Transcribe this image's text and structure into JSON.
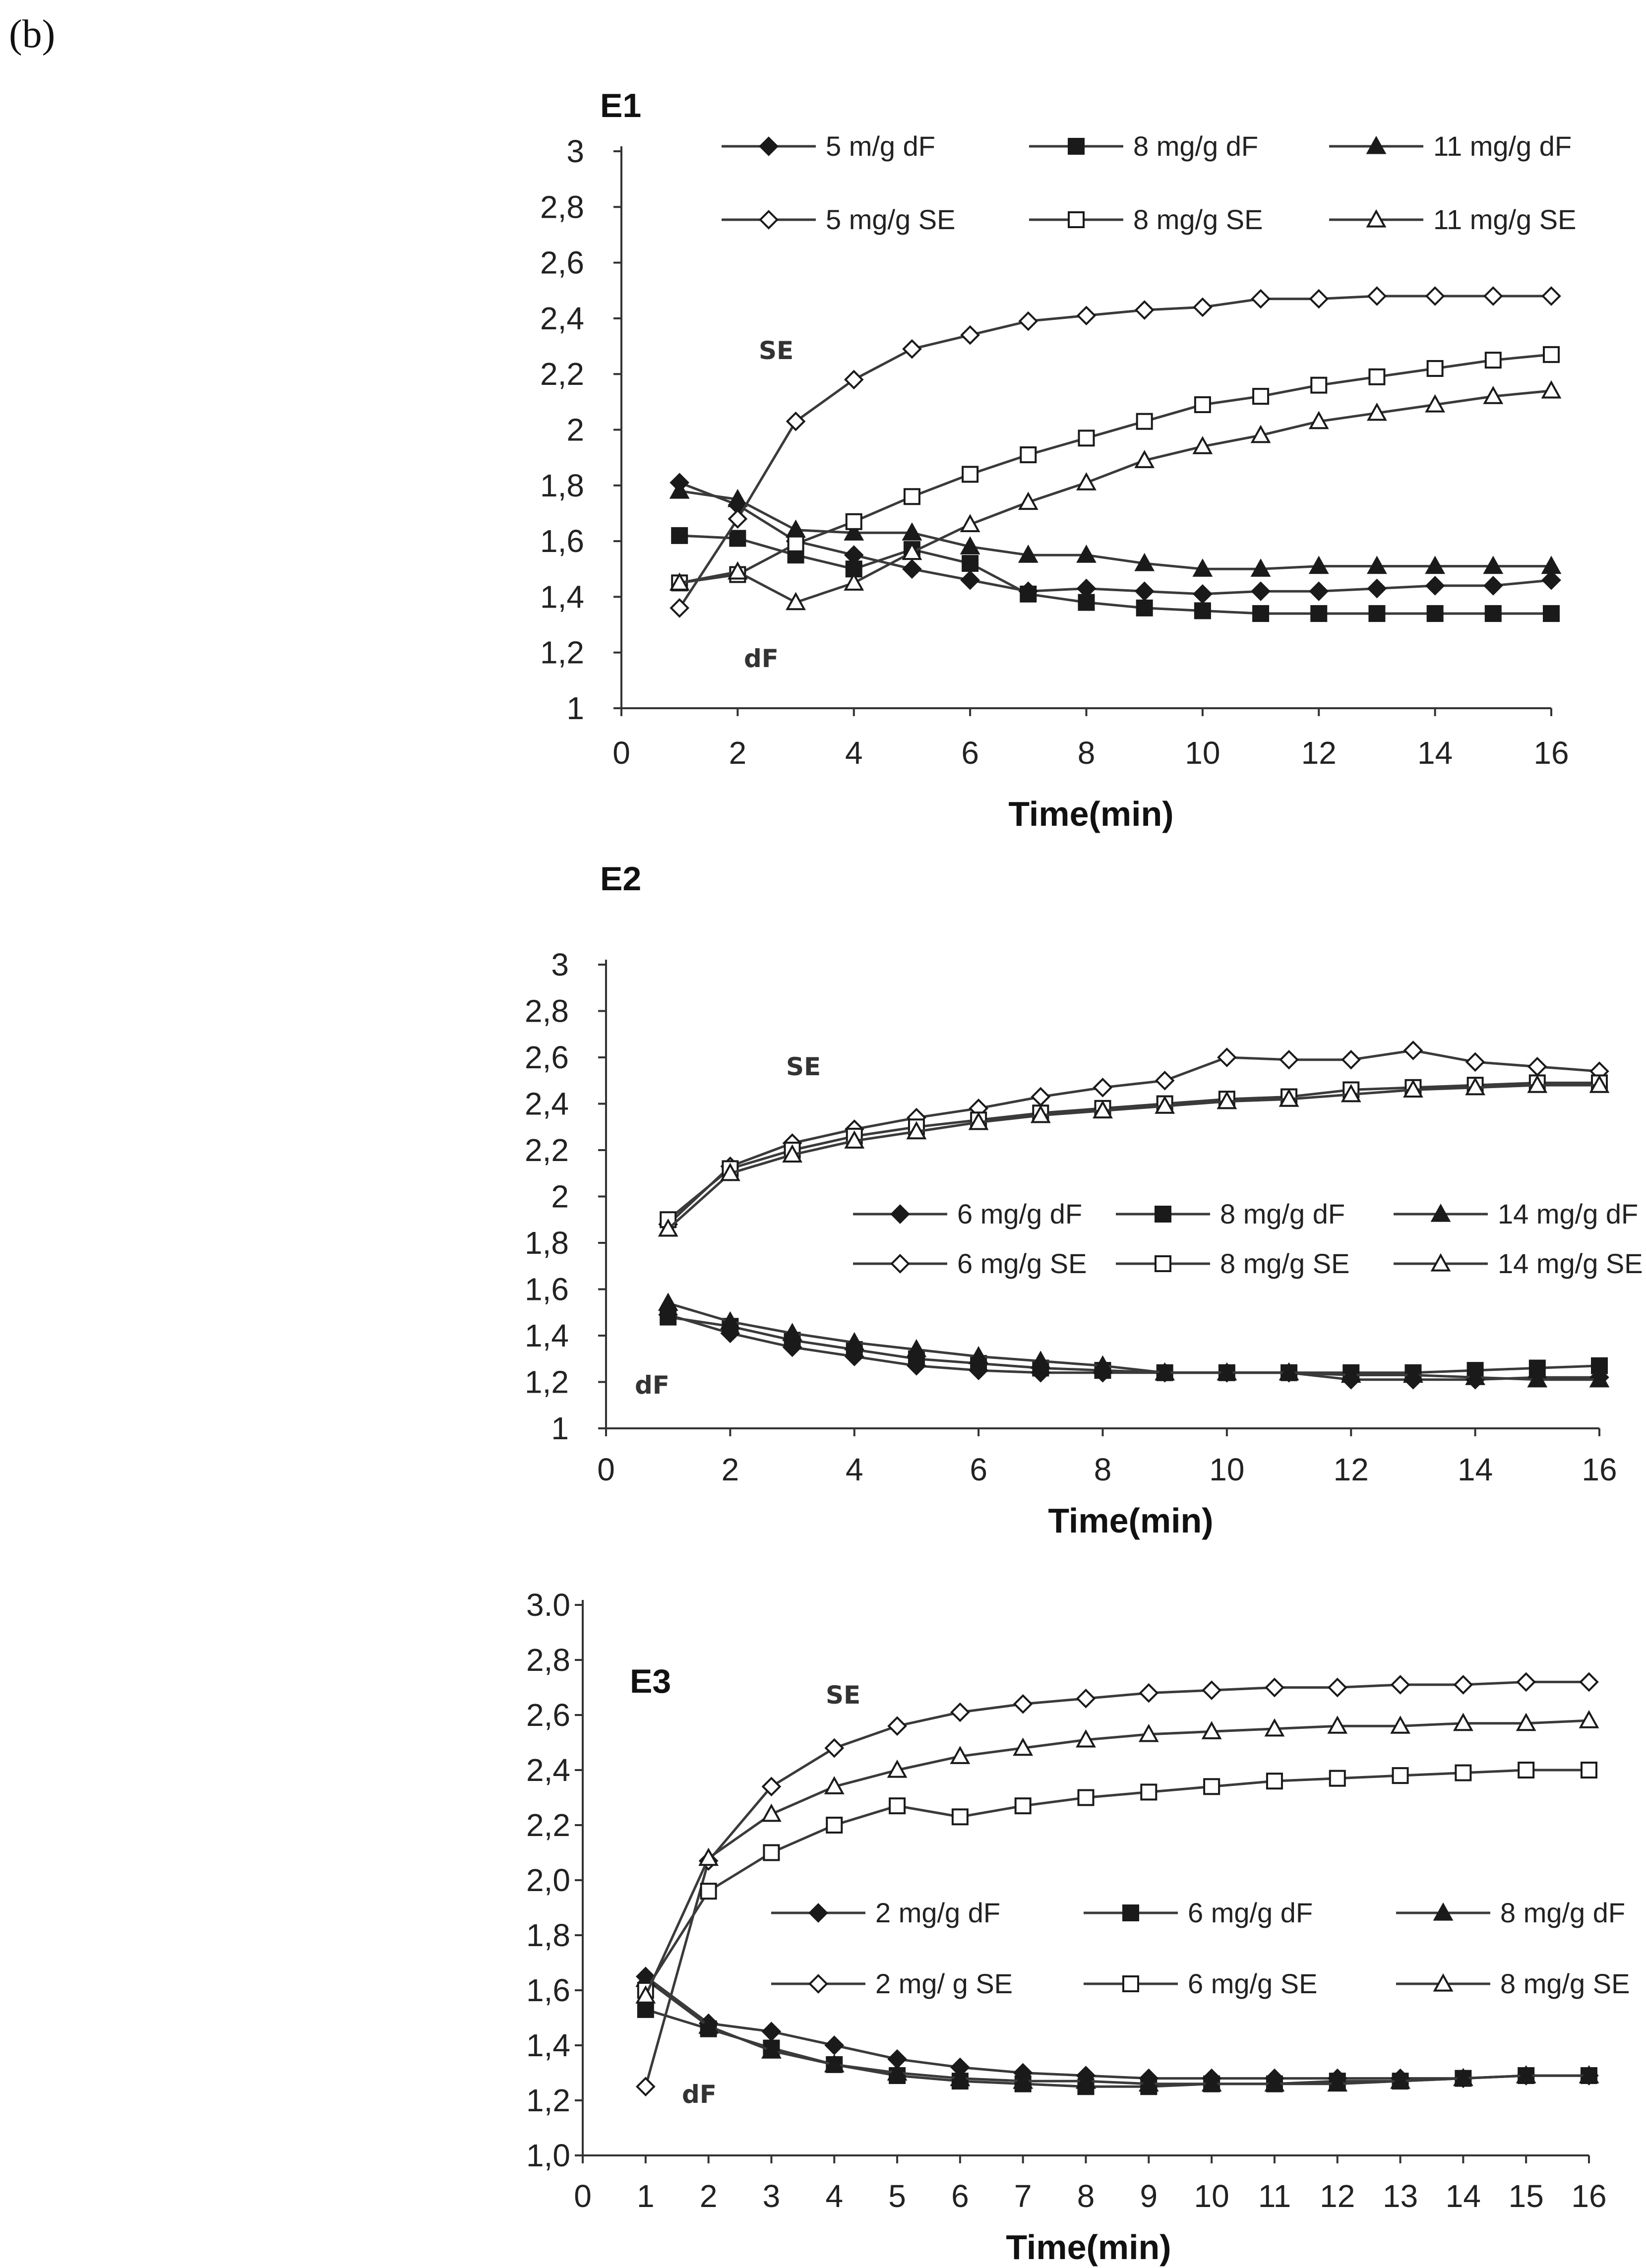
{
  "panel_label": "(b)",
  "chart_data": [
    {
      "type": "line",
      "title": "E1",
      "xlabel": "Time(min)",
      "ylabel": "",
      "xlim": [
        0,
        16
      ],
      "ylim": [
        1,
        3
      ],
      "x_ticks": [
        "0",
        "2",
        "4",
        "6",
        "8",
        "10",
        "12",
        "14",
        "16"
      ],
      "y_ticks": [
        "1",
        "1,2",
        "1,4",
        "1,6",
        "1,8",
        "2",
        "2,2",
        "2,4",
        "2,6",
        "2,8",
        "3"
      ],
      "x": [
        1,
        2,
        3,
        4,
        5,
        6,
        7,
        8,
        9,
        10,
        11,
        12,
        13,
        14,
        15,
        16
      ],
      "annotations": [
        "SE",
        "dF"
      ],
      "series": [
        {
          "name": "5 m/g dF",
          "marker": "diamond",
          "filled": true,
          "values": [
            1.81,
            1.73,
            1.6,
            1.55,
            1.5,
            1.46,
            1.42,
            1.43,
            1.42,
            1.41,
            1.42,
            1.42,
            1.43,
            1.44,
            1.44,
            1.46
          ]
        },
        {
          "name": "8 mg/g dF",
          "marker": "square",
          "filled": true,
          "values": [
            1.62,
            1.61,
            1.55,
            1.5,
            1.57,
            1.52,
            1.41,
            1.38,
            1.36,
            1.35,
            1.34,
            1.34,
            1.34,
            1.34,
            1.34,
            1.34
          ]
        },
        {
          "name": "11 mg/g dF",
          "marker": "triangle",
          "filled": true,
          "values": [
            1.78,
            1.75,
            1.64,
            1.63,
            1.63,
            1.58,
            1.55,
            1.55,
            1.52,
            1.5,
            1.5,
            1.51,
            1.51,
            1.51,
            1.51,
            1.51
          ]
        },
        {
          "name": "5 mg/g SE",
          "marker": "diamond",
          "filled": false,
          "values": [
            1.36,
            1.68,
            2.03,
            2.18,
            2.29,
            2.34,
            2.39,
            2.41,
            2.43,
            2.44,
            2.47,
            2.47,
            2.48,
            2.48,
            2.48,
            2.48
          ]
        },
        {
          "name": "8 mg/g SE",
          "marker": "square",
          "filled": false,
          "values": [
            1.45,
            1.48,
            1.59,
            1.67,
            1.76,
            1.84,
            1.91,
            1.97,
            2.03,
            2.09,
            2.12,
            2.16,
            2.19,
            2.22,
            2.25,
            2.27
          ]
        },
        {
          "name": "11 mg/g SE",
          "marker": "triangle",
          "filled": false,
          "values": [
            1.45,
            1.49,
            1.38,
            1.45,
            1.56,
            1.66,
            1.74,
            1.81,
            1.89,
            1.94,
            1.98,
            2.03,
            2.06,
            2.09,
            2.12,
            2.14
          ]
        }
      ]
    },
    {
      "type": "line",
      "title": "E2",
      "xlabel": "Time(min)",
      "ylabel": "",
      "xlim": [
        0,
        16
      ],
      "ylim": [
        1,
        3
      ],
      "x_ticks": [
        "0",
        "2",
        "4",
        "6",
        "8",
        "10",
        "12",
        "14",
        "16"
      ],
      "y_ticks": [
        "1",
        "1,2",
        "1,4",
        "1,6",
        "1,8",
        "2",
        "2,2",
        "2,4",
        "2,6",
        "2,8",
        "3"
      ],
      "x": [
        1,
        2,
        3,
        4,
        5,
        6,
        7,
        8,
        9,
        10,
        11,
        12,
        13,
        14,
        15,
        16
      ],
      "annotations": [
        "SE",
        "dF"
      ],
      "series": [
        {
          "name": "6 mg/g dF",
          "marker": "diamond",
          "filled": true,
          "values": [
            1.49,
            1.41,
            1.35,
            1.31,
            1.27,
            1.25,
            1.24,
            1.24,
            1.24,
            1.24,
            1.24,
            1.21,
            1.21,
            1.21,
            1.22,
            1.22
          ]
        },
        {
          "name": "8 mg/g dF",
          "marker": "square",
          "filled": true,
          "values": [
            1.48,
            1.44,
            1.38,
            1.34,
            1.3,
            1.28,
            1.26,
            1.25,
            1.24,
            1.24,
            1.24,
            1.24,
            1.24,
            1.25,
            1.26,
            1.27
          ]
        },
        {
          "name": "14 mg/g dF",
          "marker": "triangle",
          "filled": true,
          "values": [
            1.54,
            1.46,
            1.41,
            1.37,
            1.34,
            1.31,
            1.29,
            1.27,
            1.24,
            1.24,
            1.24,
            1.23,
            1.23,
            1.22,
            1.21,
            1.21
          ]
        },
        {
          "name": "6 mg/g SE",
          "marker": "diamond",
          "filled": false,
          "values": [
            1.88,
            2.13,
            2.23,
            2.29,
            2.34,
            2.38,
            2.43,
            2.47,
            2.5,
            2.6,
            2.59,
            2.59,
            2.63,
            2.58,
            2.56,
            2.54
          ]
        },
        {
          "name": "8 mg/g SE",
          "marker": "square",
          "filled": false,
          "values": [
            1.9,
            2.12,
            2.2,
            2.26,
            2.3,
            2.33,
            2.36,
            2.38,
            2.4,
            2.42,
            2.43,
            2.46,
            2.47,
            2.48,
            2.49,
            2.49
          ]
        },
        {
          "name": "14 mg/g SE",
          "marker": "triangle",
          "filled": false,
          "values": [
            1.86,
            2.1,
            2.18,
            2.24,
            2.28,
            2.32,
            2.35,
            2.37,
            2.39,
            2.41,
            2.42,
            2.44,
            2.46,
            2.47,
            2.48,
            2.48
          ]
        }
      ]
    },
    {
      "type": "line",
      "title": "E3",
      "xlabel": "Time(min)",
      "ylabel": "",
      "xlim": [
        0,
        16
      ],
      "ylim": [
        1,
        3
      ],
      "x_ticks": [
        "0",
        "1",
        "2",
        "3",
        "4",
        "5",
        "6",
        "7",
        "8",
        "9",
        "10",
        "11",
        "12",
        "13",
        "14",
        "15",
        "16"
      ],
      "y_ticks": [
        "1,0",
        "1,2",
        "1,4",
        "1,6",
        "1,8",
        "2,0",
        "2,2",
        "2,4",
        "2,6",
        "2,8",
        "3.0"
      ],
      "x": [
        1,
        2,
        3,
        4,
        5,
        6,
        7,
        8,
        9,
        10,
        11,
        12,
        13,
        14,
        15,
        16
      ],
      "annotations": [
        "SE",
        "dF"
      ],
      "series": [
        {
          "name": "2 mg/g dF",
          "marker": "diamond",
          "filled": true,
          "values": [
            1.65,
            1.48,
            1.45,
            1.4,
            1.35,
            1.32,
            1.3,
            1.29,
            1.28,
            1.28,
            1.28,
            1.28,
            1.28,
            1.28,
            1.29,
            1.29
          ]
        },
        {
          "name": "6 mg/g dF",
          "marker": "square",
          "filled": true,
          "values": [
            1.53,
            1.46,
            1.39,
            1.33,
            1.29,
            1.27,
            1.26,
            1.25,
            1.25,
            1.26,
            1.26,
            1.27,
            1.27,
            1.28,
            1.29,
            1.29
          ]
        },
        {
          "name": "8 mg/g dF",
          "marker": "triangle",
          "filled": true,
          "values": [
            1.64,
            1.47,
            1.38,
            1.33,
            1.3,
            1.28,
            1.27,
            1.27,
            1.26,
            1.26,
            1.26,
            1.26,
            1.27,
            1.28,
            1.29,
            1.29
          ]
        },
        {
          "name": "2 mg/ g SE",
          "marker": "diamond",
          "filled": false,
          "values": [
            1.25,
            2.07,
            2.34,
            2.48,
            2.56,
            2.61,
            2.64,
            2.66,
            2.68,
            2.69,
            2.7,
            2.7,
            2.71,
            2.71,
            2.72,
            2.72
          ]
        },
        {
          "name": "6 mg/g SE",
          "marker": "square",
          "filled": false,
          "values": [
            1.6,
            1.96,
            2.1,
            2.2,
            2.27,
            2.23,
            2.27,
            2.3,
            2.32,
            2.34,
            2.36,
            2.37,
            2.38,
            2.39,
            2.4,
            2.4
          ]
        },
        {
          "name": "8 mg/g SE",
          "marker": "triangle",
          "filled": false,
          "values": [
            1.58,
            2.08,
            2.24,
            2.34,
            2.4,
            2.45,
            2.48,
            2.51,
            2.53,
            2.54,
            2.55,
            2.56,
            2.56,
            2.57,
            2.57,
            2.58
          ]
        }
      ]
    }
  ]
}
